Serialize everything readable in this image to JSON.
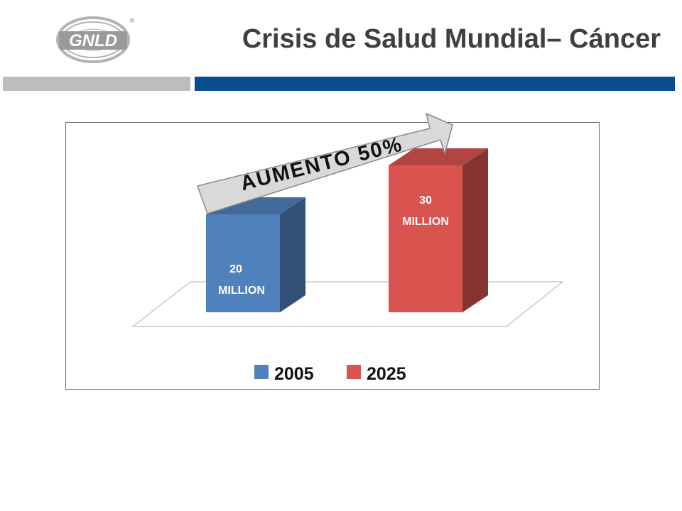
{
  "header": {
    "title": "Crisis de Salud Mundial– Cáncer",
    "logo_text": "GNLD",
    "logo_mark": "®"
  },
  "colors": {
    "title_text": "#3f3f3f",
    "rule_grey": "#bdbdbd",
    "rule_blue": "#0b4c8f",
    "series_2005": "#4f81bd",
    "series_2025": "#d9534f"
  },
  "chart_data": {
    "type": "bar",
    "categories": [
      "2005",
      "2025"
    ],
    "values": [
      20,
      30
    ],
    "value_labels": [
      {
        "value": "20",
        "unit": "MILLION"
      },
      {
        "value": "30",
        "unit": "MILLION"
      }
    ],
    "annotation": "AUMENTO 50%",
    "legend": {
      "placement": "bottom",
      "entries": [
        {
          "name": "2005",
          "color": "#4f81bd"
        },
        {
          "name": "2025",
          "color": "#d9534f"
        }
      ]
    },
    "ylim": [
      0,
      30
    ],
    "grid": false,
    "style": "3d-column"
  }
}
